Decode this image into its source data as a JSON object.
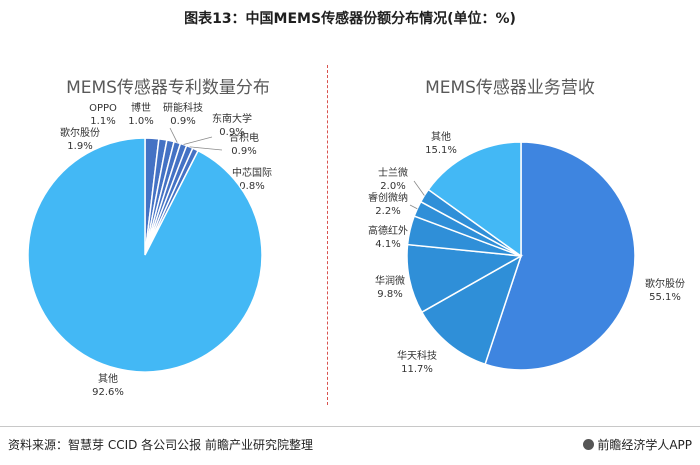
{
  "figure_title": "图表13：中国MEMS传感器份额分布情况(单位：%)",
  "source": "资料来源：智慧芽 CCID 各公司公报 前瞻产业研究院整理",
  "brand": "前瞻经济学人APP",
  "chart_data": [
    {
      "type": "pie",
      "title": "MEMS传感器专利数量分布",
      "slices": [
        {
          "label": "歌尔股份",
          "value_label": "1.9%",
          "value": 1.9,
          "color": "#4472C4"
        },
        {
          "label": "OPPO",
          "value_label": "1.1%",
          "value": 1.1,
          "color": "#4472C4"
        },
        {
          "label": "博世",
          "value_label": "1.0%",
          "value": 1.0,
          "color": "#4472C4"
        },
        {
          "label": "研能科技",
          "value_label": "0.9%",
          "value": 0.9,
          "color": "#4472C4"
        },
        {
          "label": "东南大学",
          "value_label": "0.9%",
          "value": 0.9,
          "color": "#4472C4"
        },
        {
          "label": "合积电",
          "value_label": "0.9%",
          "value": 0.9,
          "color": "#4472C4"
        },
        {
          "label": "中芯国际",
          "value_label": "0.8%",
          "value": 0.8,
          "color": "#4472C4"
        },
        {
          "label": "其他",
          "value_label": "92.6%",
          "value": 92.6,
          "color": "#43B8F5"
        }
      ]
    },
    {
      "type": "pie",
      "title": "MEMS传感器业务营收",
      "slices": [
        {
          "label": "歌尔股份",
          "value_label": "55.1%",
          "value": 55.1,
          "color": "#3E85E0"
        },
        {
          "label": "华天科技",
          "value_label": "11.7%",
          "value": 11.7,
          "color": "#2F8FD8"
        },
        {
          "label": "华润微",
          "value_label": "9.8%",
          "value": 9.8,
          "color": "#2F8FD8"
        },
        {
          "label": "高德红外",
          "value_label": "4.1%",
          "value": 4.1,
          "color": "#2F8FD8"
        },
        {
          "label": "睿创微纳",
          "value_label": "2.2%",
          "value": 2.2,
          "color": "#2F8FD8"
        },
        {
          "label": "士兰微",
          "value_label": "2.0%",
          "value": 2.0,
          "color": "#2F8FD8"
        },
        {
          "label": "其他",
          "value_label": "15.1%",
          "value": 15.1,
          "color": "#43B8F5"
        }
      ]
    }
  ]
}
